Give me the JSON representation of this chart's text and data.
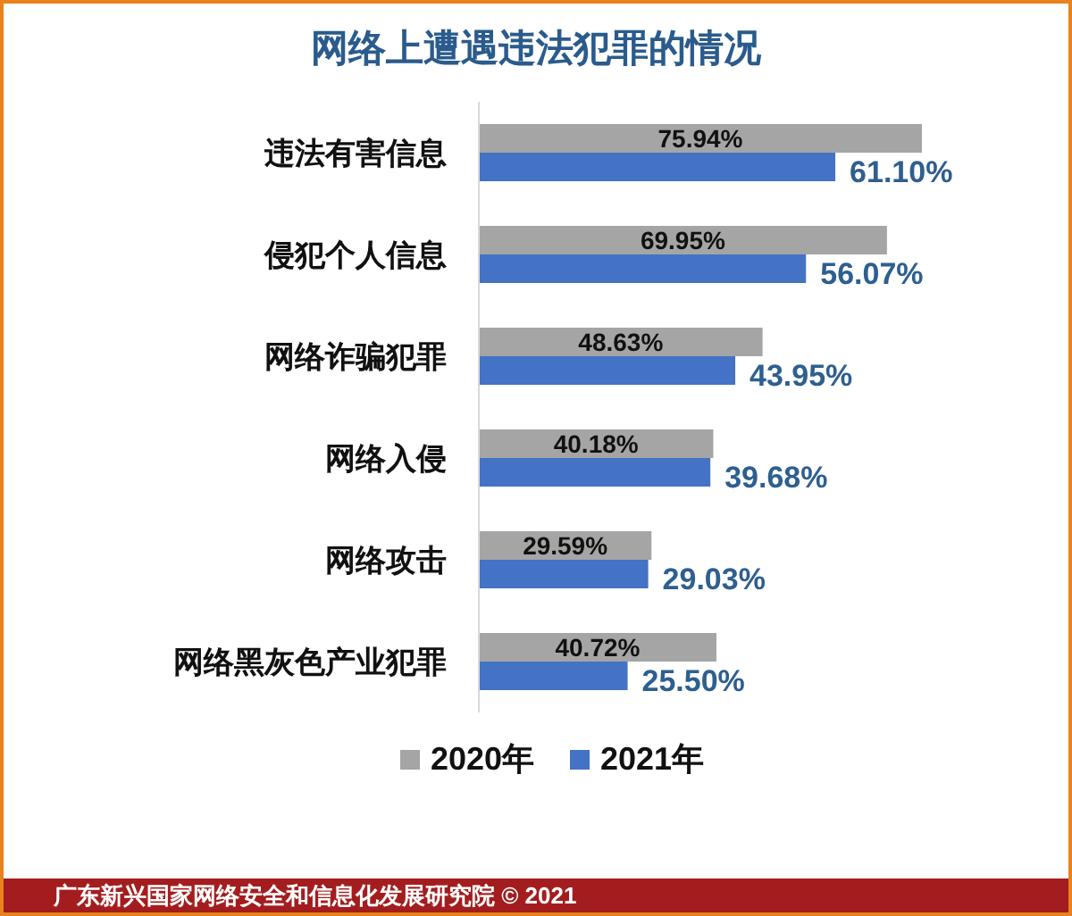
{
  "chart_data": {
    "type": "bar",
    "orientation": "horizontal",
    "title": "网络上遭遇违法犯罪的情况",
    "categories": [
      "违法有害信息",
      "侵犯个人信息",
      "网络诈骗犯罪",
      "网络入侵",
      "网络攻击",
      "网络黑灰色产业犯罪"
    ],
    "series": [
      {
        "name": "2020年",
        "color": "#a5a5a5",
        "values": [
          75.94,
          69.95,
          48.63,
          40.18,
          29.59,
          40.72
        ],
        "value_labels": [
          "75.94%",
          "69.95%",
          "48.63%",
          "40.18%",
          "29.59%",
          "40.72%"
        ]
      },
      {
        "name": "2021年",
        "color": "#4472c4",
        "values": [
          61.1,
          56.07,
          43.95,
          39.68,
          29.03,
          25.5
        ],
        "value_labels": [
          "61.10%",
          "56.07%",
          "43.95%",
          "39.68%",
          "29.03%",
          "25.50%"
        ]
      }
    ],
    "tick_labels": "y",
    "grid": false,
    "legend": "bottom",
    "annotations": [
      "广东新兴国家网络安全和信息化发展研究院 © 2021"
    ]
  }
}
